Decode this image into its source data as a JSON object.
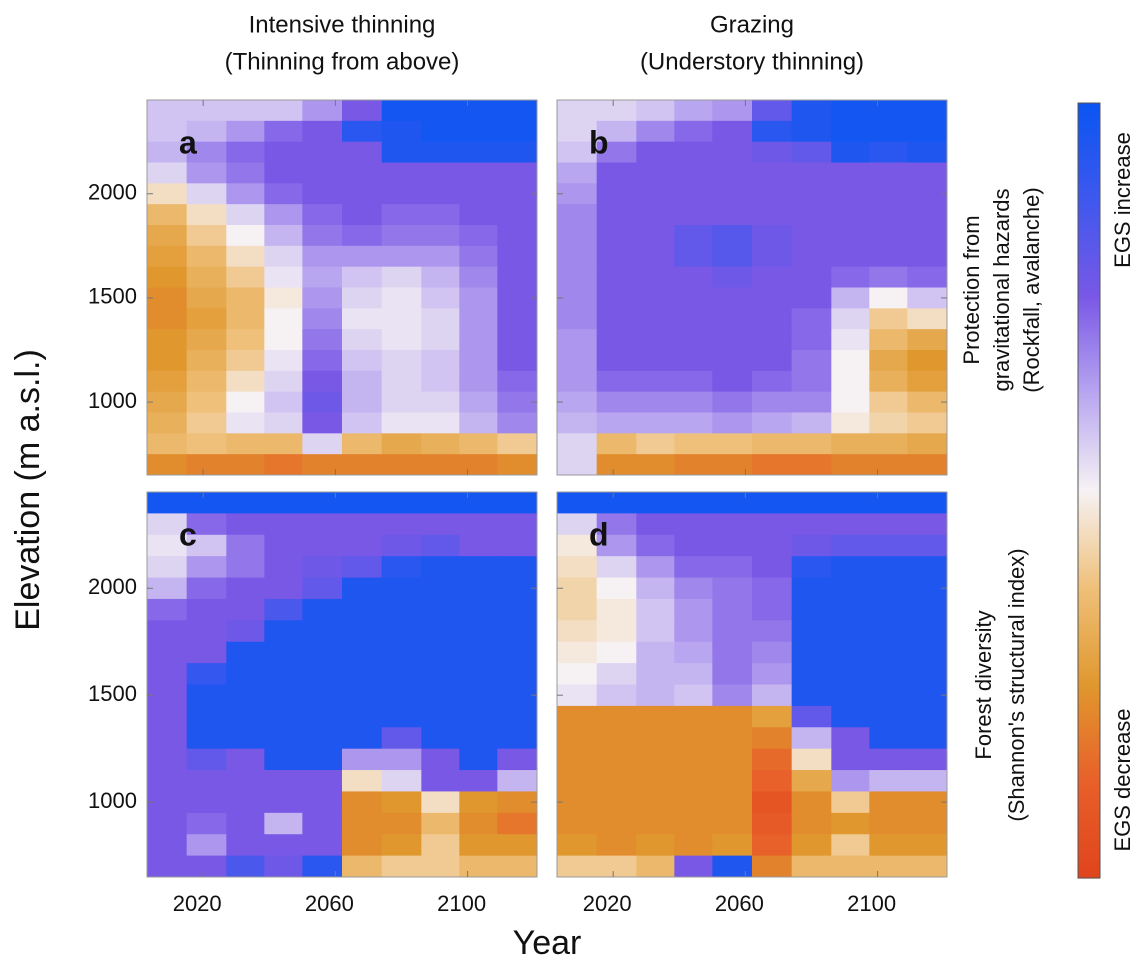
{
  "figure": {
    "column_titles": [
      [
        "Intensive thinning",
        "(Thinning from above)"
      ],
      [
        "Grazing",
        "(Understory thinning)"
      ]
    ],
    "row_titles": [
      [
        "Protection from",
        "gravitational hazards",
        "(Rockfall, avalanche)"
      ],
      [
        "Forest diversity",
        "(Shannon's structural index)"
      ]
    ],
    "y_label": "Elevation (m a.s.l.)",
    "x_label": "Year",
    "colorbar": {
      "zlim": [
        -1,
        1
      ],
      "colors": [
        "#e0441c",
        "#e8602a",
        "#e0982e",
        "#efc07a",
        "#f6f2f4",
        "#b8a6f0",
        "#7a58e6",
        "#3e58ee",
        "#0a55f2"
      ],
      "top_label": "EGS increase",
      "bottom_label": "EGS decrease"
    }
  },
  "chart_data": [
    {
      "type": "heatmap",
      "label": "a",
      "x": [
        2009,
        2021,
        2033,
        2044,
        2056,
        2068,
        2080,
        2092,
        2103,
        2115
      ],
      "y": [
        2400,
        2300,
        2200,
        2100,
        2000,
        1900,
        1800,
        1700,
        1600,
        1500,
        1400,
        1300,
        1200,
        1100,
        1000,
        900,
        800,
        700
      ],
      "xlim": [
        2003,
        2121
      ],
      "ylim": [
        650,
        2450
      ],
      "xticks": [
        2020,
        2060,
        2100
      ],
      "yticks": [
        1000,
        1500,
        2000
      ],
      "values": [
        [
          0.15,
          0.15,
          0.15,
          0.15,
          0.3,
          0.5,
          0.95,
          0.95,
          0.95,
          0.95
        ],
        [
          0.15,
          0.2,
          0.3,
          0.45,
          0.5,
          0.85,
          0.9,
          0.95,
          0.95,
          0.95
        ],
        [
          0.2,
          0.35,
          0.45,
          0.5,
          0.5,
          0.5,
          0.9,
          0.9,
          0.9,
          0.9
        ],
        [
          0.1,
          0.3,
          0.4,
          0.5,
          0.5,
          0.5,
          0.5,
          0.5,
          0.5,
          0.5
        ],
        [
          -0.1,
          0.1,
          0.3,
          0.45,
          0.5,
          0.5,
          0.5,
          0.5,
          0.5,
          0.5
        ],
        [
          -0.3,
          -0.1,
          0.1,
          0.3,
          0.45,
          0.5,
          0.45,
          0.45,
          0.5,
          0.5
        ],
        [
          -0.4,
          -0.2,
          0.0,
          0.2,
          0.4,
          0.45,
          0.4,
          0.4,
          0.45,
          0.5
        ],
        [
          -0.45,
          -0.3,
          -0.1,
          0.1,
          0.3,
          0.3,
          0.3,
          0.3,
          0.4,
          0.5
        ],
        [
          -0.5,
          -0.35,
          -0.2,
          0.05,
          0.25,
          0.15,
          0.1,
          0.2,
          0.35,
          0.5
        ],
        [
          -0.55,
          -0.4,
          -0.3,
          -0.05,
          0.3,
          0.1,
          0.05,
          0.15,
          0.3,
          0.5
        ],
        [
          -0.55,
          -0.45,
          -0.3,
          0.0,
          0.35,
          0.05,
          0.05,
          0.1,
          0.3,
          0.5
        ],
        [
          -0.5,
          -0.4,
          -0.25,
          0.0,
          0.4,
          0.1,
          0.05,
          0.1,
          0.3,
          0.5
        ],
        [
          -0.5,
          -0.35,
          -0.2,
          0.05,
          0.45,
          0.15,
          0.1,
          0.15,
          0.3,
          0.5
        ],
        [
          -0.45,
          -0.3,
          -0.1,
          0.1,
          0.5,
          0.2,
          0.1,
          0.15,
          0.3,
          0.45
        ],
        [
          -0.4,
          -0.25,
          0.0,
          0.15,
          0.55,
          0.2,
          0.1,
          0.1,
          0.25,
          0.4
        ],
        [
          -0.35,
          -0.2,
          0.05,
          0.1,
          0.5,
          0.15,
          0.05,
          0.05,
          0.2,
          0.35
        ],
        [
          -0.3,
          -0.25,
          -0.3,
          -0.3,
          0.1,
          -0.3,
          -0.4,
          -0.35,
          -0.3,
          -0.2
        ],
        [
          -0.55,
          -0.6,
          -0.6,
          -0.65,
          -0.6,
          -0.6,
          -0.6,
          -0.6,
          -0.6,
          -0.55
        ]
      ]
    },
    {
      "type": "heatmap",
      "label": "b",
      "x": [
        2009,
        2021,
        2033,
        2044,
        2056,
        2068,
        2080,
        2092,
        2103,
        2115
      ],
      "y": [
        2400,
        2300,
        2200,
        2100,
        2000,
        1900,
        1800,
        1700,
        1600,
        1500,
        1400,
        1300,
        1200,
        1100,
        1000,
        900,
        800,
        700
      ],
      "xlim": [
        2003,
        2121
      ],
      "ylim": [
        650,
        2450
      ],
      "xticks": [
        2020,
        2060,
        2100
      ],
      "yticks": [
        1000,
        1500,
        2000
      ],
      "values": [
        [
          0.1,
          0.1,
          0.15,
          0.25,
          0.3,
          0.6,
          0.9,
          0.95,
          0.95,
          0.95
        ],
        [
          0.1,
          0.2,
          0.35,
          0.45,
          0.5,
          0.85,
          0.9,
          0.95,
          0.95,
          0.95
        ],
        [
          0.15,
          0.4,
          0.5,
          0.5,
          0.5,
          0.55,
          0.6,
          0.9,
          0.85,
          0.9
        ],
        [
          0.25,
          0.5,
          0.5,
          0.5,
          0.5,
          0.5,
          0.5,
          0.5,
          0.5,
          0.5
        ],
        [
          0.3,
          0.5,
          0.5,
          0.5,
          0.5,
          0.5,
          0.5,
          0.5,
          0.5,
          0.5
        ],
        [
          0.35,
          0.5,
          0.5,
          0.5,
          0.5,
          0.5,
          0.5,
          0.5,
          0.5,
          0.5
        ],
        [
          0.35,
          0.5,
          0.5,
          0.6,
          0.65,
          0.55,
          0.5,
          0.5,
          0.5,
          0.5
        ],
        [
          0.35,
          0.5,
          0.5,
          0.6,
          0.65,
          0.55,
          0.5,
          0.5,
          0.5,
          0.5
        ],
        [
          0.35,
          0.5,
          0.5,
          0.5,
          0.55,
          0.5,
          0.5,
          0.45,
          0.4,
          0.45
        ],
        [
          0.35,
          0.5,
          0.5,
          0.5,
          0.5,
          0.5,
          0.5,
          0.2,
          0.0,
          0.15
        ],
        [
          0.35,
          0.5,
          0.5,
          0.5,
          0.5,
          0.5,
          0.45,
          0.1,
          -0.2,
          -0.1
        ],
        [
          0.3,
          0.5,
          0.5,
          0.5,
          0.5,
          0.5,
          0.45,
          0.05,
          -0.3,
          -0.4
        ],
        [
          0.3,
          0.5,
          0.5,
          0.5,
          0.5,
          0.5,
          0.4,
          0.0,
          -0.4,
          -0.5
        ],
        [
          0.3,
          0.45,
          0.45,
          0.45,
          0.5,
          0.45,
          0.4,
          0.0,
          -0.35,
          -0.45
        ],
        [
          0.25,
          0.35,
          0.35,
          0.35,
          0.4,
          0.35,
          0.35,
          0.0,
          -0.2,
          -0.3
        ],
        [
          0.2,
          0.25,
          0.25,
          0.25,
          0.3,
          0.25,
          0.2,
          -0.05,
          -0.15,
          -0.2
        ],
        [
          0.1,
          -0.3,
          -0.2,
          -0.25,
          -0.25,
          -0.3,
          -0.3,
          -0.35,
          -0.35,
          -0.4
        ],
        [
          0.1,
          -0.55,
          -0.55,
          -0.6,
          -0.6,
          -0.65,
          -0.65,
          -0.6,
          -0.6,
          -0.6
        ]
      ]
    },
    {
      "type": "heatmap",
      "label": "c",
      "x": [
        2009,
        2021,
        2033,
        2044,
        2056,
        2068,
        2080,
        2092,
        2103,
        2115
      ],
      "y": [
        2400,
        2300,
        2200,
        2100,
        2000,
        1900,
        1800,
        1700,
        1600,
        1500,
        1400,
        1300,
        1200,
        1100,
        1000,
        900,
        800,
        700
      ],
      "xlim": [
        2003,
        2121
      ],
      "ylim": [
        650,
        2450
      ],
      "xticks": [
        2020,
        2060,
        2100
      ],
      "yticks": [
        1000,
        1500,
        2000
      ],
      "values": [
        [
          0.95,
          0.95,
          0.95,
          0.95,
          0.95,
          0.95,
          0.95,
          0.95,
          0.95,
          0.95
        ],
        [
          0.1,
          0.45,
          0.5,
          0.5,
          0.5,
          0.5,
          0.5,
          0.5,
          0.5,
          0.5
        ],
        [
          0.05,
          0.15,
          0.4,
          0.5,
          0.5,
          0.5,
          0.55,
          0.6,
          0.5,
          0.5
        ],
        [
          0.1,
          0.3,
          0.4,
          0.5,
          0.55,
          0.6,
          0.85,
          0.9,
          0.9,
          0.9
        ],
        [
          0.2,
          0.45,
          0.5,
          0.5,
          0.6,
          0.9,
          0.9,
          0.9,
          0.9,
          0.9
        ],
        [
          0.45,
          0.5,
          0.5,
          0.7,
          0.9,
          0.9,
          0.9,
          0.9,
          0.9,
          0.9
        ],
        [
          0.5,
          0.5,
          0.55,
          0.9,
          0.9,
          0.9,
          0.9,
          0.9,
          0.9,
          0.9
        ],
        [
          0.5,
          0.5,
          0.9,
          0.9,
          0.9,
          0.9,
          0.9,
          0.9,
          0.9,
          0.9
        ],
        [
          0.5,
          0.8,
          0.9,
          0.9,
          0.9,
          0.9,
          0.9,
          0.9,
          0.9,
          0.9
        ],
        [
          0.5,
          0.9,
          0.9,
          0.9,
          0.9,
          0.9,
          0.9,
          0.9,
          0.9,
          0.9
        ],
        [
          0.5,
          0.9,
          0.9,
          0.9,
          0.9,
          0.9,
          0.9,
          0.9,
          0.9,
          0.9
        ],
        [
          0.5,
          0.9,
          0.9,
          0.9,
          0.9,
          0.9,
          0.6,
          0.9,
          0.9,
          0.9
        ],
        [
          0.5,
          0.6,
          0.5,
          0.9,
          0.9,
          0.3,
          0.3,
          0.5,
          0.9,
          0.5
        ],
        [
          0.5,
          0.5,
          0.5,
          0.5,
          0.5,
          -0.1,
          0.1,
          0.5,
          0.5,
          0.2
        ],
        [
          0.5,
          0.5,
          0.5,
          0.5,
          0.5,
          -0.55,
          -0.5,
          -0.1,
          -0.5,
          -0.55
        ],
        [
          0.5,
          0.45,
          0.5,
          0.2,
          0.5,
          -0.55,
          -0.55,
          -0.3,
          -0.55,
          -0.65
        ],
        [
          0.5,
          0.3,
          0.5,
          0.5,
          0.5,
          -0.55,
          -0.5,
          -0.2,
          -0.5,
          -0.5
        ],
        [
          0.5,
          0.5,
          0.7,
          0.55,
          0.85,
          -0.3,
          -0.2,
          -0.2,
          -0.3,
          -0.3
        ]
      ]
    },
    {
      "type": "heatmap",
      "label": "d",
      "x": [
        2009,
        2021,
        2033,
        2044,
        2056,
        2068,
        2080,
        2092,
        2103,
        2115
      ],
      "y": [
        2400,
        2300,
        2200,
        2100,
        2000,
        1900,
        1800,
        1700,
        1600,
        1500,
        1400,
        1300,
        1200,
        1100,
        1000,
        900,
        800,
        700
      ],
      "xlim": [
        2003,
        2121
      ],
      "ylim": [
        650,
        2450
      ],
      "xticks": [
        2020,
        2060,
        2100
      ],
      "yticks": [
        1000,
        1500,
        2000
      ],
      "values": [
        [
          0.95,
          0.95,
          0.95,
          0.95,
          0.95,
          0.95,
          0.95,
          0.95,
          0.95,
          0.95
        ],
        [
          0.1,
          0.4,
          0.5,
          0.5,
          0.5,
          0.5,
          0.5,
          0.5,
          0.5,
          0.5
        ],
        [
          -0.05,
          0.3,
          0.45,
          0.5,
          0.5,
          0.5,
          0.55,
          0.6,
          0.6,
          0.6
        ],
        [
          -0.1,
          0.1,
          0.3,
          0.45,
          0.45,
          0.5,
          0.85,
          0.9,
          0.9,
          0.9
        ],
        [
          -0.15,
          0.0,
          0.2,
          0.35,
          0.4,
          0.45,
          0.9,
          0.9,
          0.9,
          0.9
        ],
        [
          -0.15,
          -0.05,
          0.15,
          0.3,
          0.4,
          0.45,
          0.9,
          0.9,
          0.9,
          0.9
        ],
        [
          -0.1,
          -0.05,
          0.15,
          0.3,
          0.4,
          0.4,
          0.9,
          0.9,
          0.9,
          0.9
        ],
        [
          -0.05,
          0.0,
          0.2,
          0.25,
          0.4,
          0.35,
          0.9,
          0.9,
          0.9,
          0.9
        ],
        [
          0.0,
          0.1,
          0.2,
          0.2,
          0.4,
          0.3,
          0.9,
          0.9,
          0.9,
          0.9
        ],
        [
          0.05,
          0.15,
          0.2,
          0.15,
          0.35,
          0.2,
          0.9,
          0.9,
          0.9,
          0.9
        ],
        [
          -0.55,
          -0.55,
          -0.55,
          -0.55,
          -0.55,
          -0.45,
          0.6,
          0.9,
          0.9,
          0.9
        ],
        [
          -0.55,
          -0.55,
          -0.55,
          -0.55,
          -0.55,
          -0.6,
          0.2,
          0.5,
          0.9,
          0.9
        ],
        [
          -0.55,
          -0.55,
          -0.55,
          -0.55,
          -0.55,
          -0.7,
          -0.1,
          0.5,
          0.5,
          0.5
        ],
        [
          -0.55,
          -0.55,
          -0.55,
          -0.55,
          -0.55,
          -0.75,
          -0.4,
          0.3,
          0.2,
          0.2
        ],
        [
          -0.55,
          -0.55,
          -0.55,
          -0.55,
          -0.55,
          -0.85,
          -0.55,
          -0.2,
          -0.55,
          -0.55
        ],
        [
          -0.55,
          -0.55,
          -0.55,
          -0.55,
          -0.55,
          -0.8,
          -0.55,
          -0.5,
          -0.55,
          -0.55
        ],
        [
          -0.5,
          -0.55,
          -0.5,
          -0.55,
          -0.5,
          -0.75,
          -0.5,
          -0.2,
          -0.5,
          -0.5
        ],
        [
          -0.2,
          -0.2,
          -0.3,
          0.5,
          0.9,
          -0.6,
          -0.3,
          -0.3,
          -0.3,
          -0.3
        ]
      ]
    }
  ]
}
